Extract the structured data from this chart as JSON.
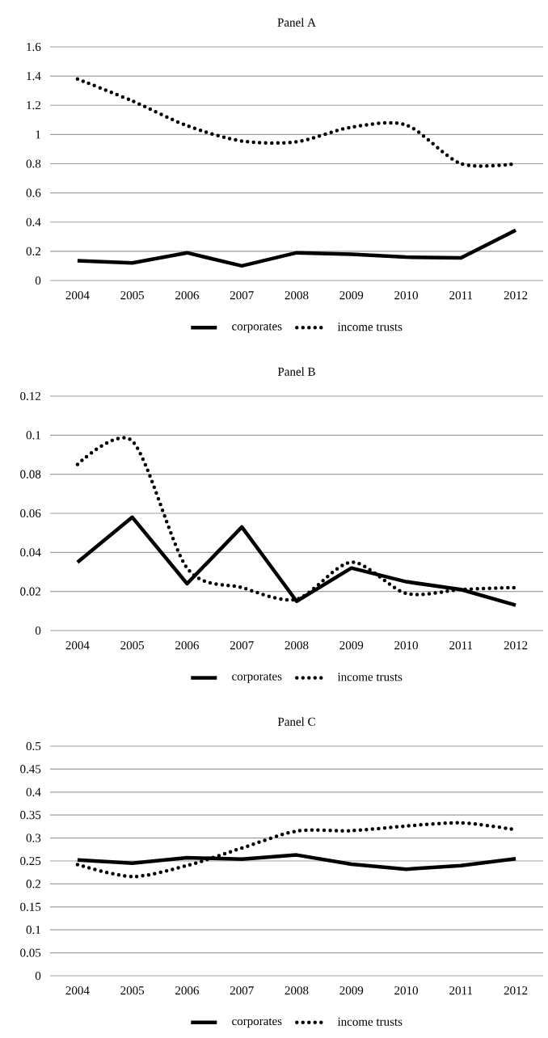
{
  "chart_data": [
    {
      "type": "line",
      "title": "Panel A",
      "categories": [
        "2004",
        "2005",
        "2006",
        "2007",
        "2008",
        "2009",
        "2010",
        "2011",
        "2012"
      ],
      "ylim": [
        0,
        1.6
      ],
      "yticks": [
        0,
        0.2,
        0.4,
        0.6,
        0.8,
        1,
        1.2,
        1.4,
        1.6
      ],
      "grid": "y",
      "legend": "bottom",
      "marker": "none",
      "series": [
        {
          "name": "corporates",
          "color": "#000000",
          "line_style": "solid",
          "values": [
            0.135,
            0.12,
            0.19,
            0.1,
            0.19,
            0.18,
            0.16,
            0.155,
            0.345
          ]
        },
        {
          "name": "income trusts",
          "color": "#000000",
          "line_style": "dotted",
          "values": [
            1.38,
            1.23,
            1.06,
            0.955,
            0.95,
            1.05,
            1.065,
            0.8,
            0.8
          ]
        }
      ]
    },
    {
      "type": "line",
      "title": "Panel B",
      "categories": [
        "2004",
        "2005",
        "2006",
        "2007",
        "2008",
        "2009",
        "2010",
        "2011",
        "2012"
      ],
      "ylim": [
        0,
        0.12
      ],
      "yticks": [
        0,
        0.02,
        0.04,
        0.06,
        0.08,
        0.1,
        0.12
      ],
      "grid": "y",
      "legend": "bottom",
      "marker": "none",
      "series": [
        {
          "name": "corporates",
          "color": "#000000",
          "line_style": "solid",
          "values": [
            0.035,
            0.058,
            0.024,
            0.053,
            0.015,
            0.032,
            0.025,
            0.021,
            0.013
          ]
        },
        {
          "name": "income trusts",
          "color": "#000000",
          "line_style": "dotted",
          "values": [
            0.085,
            0.097,
            0.032,
            0.022,
            0.016,
            0.035,
            0.019,
            0.021,
            0.022
          ]
        }
      ]
    },
    {
      "type": "line",
      "title": "Panel C",
      "categories": [
        "2004",
        "2005",
        "2006",
        "2007",
        "2008",
        "2009",
        "2010",
        "2011",
        "2012"
      ],
      "ylim": [
        0,
        0.5
      ],
      "yticks": [
        0,
        0.05,
        0.1,
        0.15,
        0.2,
        0.25,
        0.3,
        0.35,
        0.4,
        0.45,
        0.5
      ],
      "grid": "y",
      "legend": "bottom",
      "marker": "none",
      "series": [
        {
          "name": "corporates",
          "color": "#000000",
          "line_style": "solid",
          "values": [
            0.252,
            0.245,
            0.257,
            0.254,
            0.263,
            0.243,
            0.232,
            0.24,
            0.255
          ]
        },
        {
          "name": "income trusts",
          "color": "#000000",
          "line_style": "dotted",
          "values": [
            0.242,
            0.216,
            0.24,
            0.278,
            0.315,
            0.316,
            0.326,
            0.333,
            0.318
          ]
        }
      ]
    }
  ]
}
